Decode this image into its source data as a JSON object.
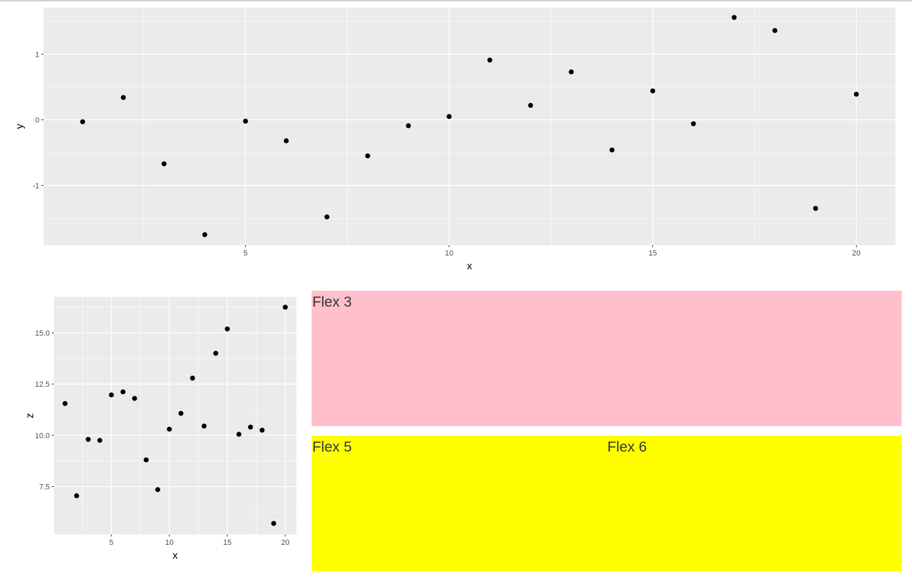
{
  "panels": {
    "flex3": {
      "label": "Flex 3",
      "color": "#ffc0cb"
    },
    "flex5": {
      "label": "Flex 5",
      "color": "#ffff00"
    },
    "flex6": {
      "label": "Flex 6",
      "color": "#ffff00"
    }
  },
  "chart_data": [
    {
      "type": "scatter",
      "xlabel": "x",
      "ylabel": "y",
      "xlim": [
        0.04,
        20.96
      ],
      "ylim": [
        -1.91,
        1.71
      ],
      "xticks": [
        5,
        10,
        15,
        20
      ],
      "yticks": [
        -1,
        0,
        1
      ],
      "grid": true,
      "x": [
        1,
        2,
        3,
        4,
        5,
        6,
        7,
        8,
        9,
        10,
        11,
        12,
        13,
        14,
        15,
        16,
        17,
        18,
        19,
        20
      ],
      "y": [
        -0.03,
        0.34,
        -0.67,
        -1.75,
        -0.02,
        -0.32,
        -1.48,
        -0.55,
        -0.09,
        0.05,
        0.91,
        0.22,
        0.73,
        -0.46,
        0.44,
        -0.06,
        1.56,
        1.36,
        -1.35,
        0.39
      ]
    },
    {
      "type": "scatter",
      "xlabel": "x",
      "ylabel": "z",
      "xlim": [
        0.04,
        20.96
      ],
      "ylim": [
        5.16,
        16.75
      ],
      "xticks": [
        5,
        10,
        15,
        20
      ],
      "yticks": [
        7.5,
        10.0,
        12.5,
        15.0
      ],
      "ytick_labels": [
        "7.5",
        "10.0",
        "12.5",
        "15.0"
      ],
      "grid": true,
      "x": [
        1,
        2,
        3,
        4,
        5,
        6,
        7,
        8,
        9,
        10,
        11,
        12,
        13,
        14,
        15,
        16,
        17,
        18,
        19,
        20
      ],
      "y": [
        11.55,
        7.05,
        9.8,
        9.75,
        11.97,
        12.12,
        11.8,
        8.8,
        7.35,
        10.3,
        11.07,
        12.79,
        10.45,
        14.0,
        15.19,
        10.05,
        10.4,
        10.25,
        5.7,
        16.25
      ]
    }
  ]
}
